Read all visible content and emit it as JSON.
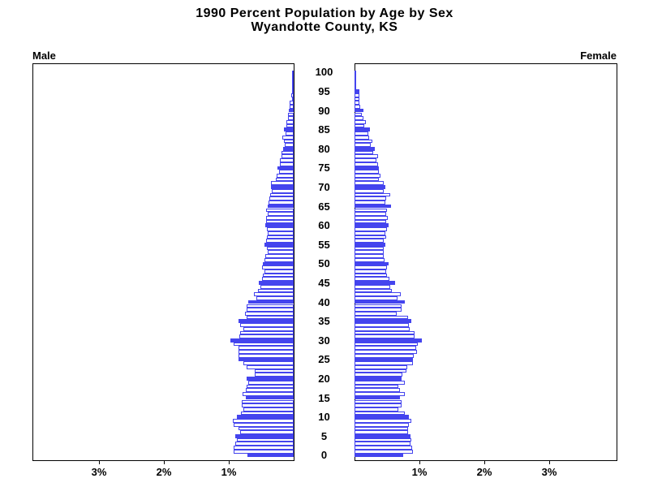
{
  "title": {
    "line1": "1990 Percent Population by Age by Sex",
    "line2": "Wyandotte County, KS"
  },
  "panels": {
    "male_label": "Male",
    "female_label": "Female"
  },
  "axis": {
    "age_tick_labels": [
      "0",
      "5",
      "10",
      "15",
      "20",
      "25",
      "30",
      "35",
      "40",
      "45",
      "50",
      "55",
      "60",
      "65",
      "70",
      "75",
      "80",
      "85",
      "90",
      "95",
      "100"
    ],
    "male_pct_tick_labels": [
      "3%",
      "2%",
      "1%"
    ],
    "female_pct_tick_labels": [
      "1%",
      "2%",
      "3%"
    ]
  },
  "colors": {
    "bar_accent": "#4444EE",
    "bar_fill_white": "#FFFFFF",
    "frame_black": "#000000"
  },
  "chart_data": {
    "type": "bar",
    "subtype": "population-pyramid",
    "title": "1990 Percent Population by Age by Sex",
    "subtitle": "Wyandotte County, KS",
    "unit": "percent of total population",
    "age_min": 0,
    "age_max": 100,
    "highlight_every_5_years": true,
    "xlim_each_side_pct": [
      0,
      4
    ],
    "x_ticks_pct": [
      1,
      2,
      3
    ],
    "series": [
      {
        "name": "Male",
        "side": "left",
        "values_by_age": [
          0.71,
          0.93,
          0.92,
          0.9,
          0.88,
          0.9,
          0.82,
          0.85,
          0.92,
          0.94,
          0.88,
          0.81,
          0.78,
          0.8,
          0.8,
          0.74,
          0.79,
          0.74,
          0.73,
          0.7,
          0.72,
          0.6,
          0.6,
          0.72,
          0.77,
          0.85,
          0.85,
          0.85,
          0.85,
          0.93,
          0.98,
          0.84,
          0.82,
          0.77,
          0.82,
          0.85,
          0.72,
          0.75,
          0.72,
          0.72,
          0.7,
          0.58,
          0.61,
          0.55,
          0.51,
          0.54,
          0.49,
          0.47,
          0.45,
          0.49,
          0.47,
          0.45,
          0.44,
          0.4,
          0.41,
          0.45,
          0.42,
          0.41,
          0.4,
          0.41,
          0.44,
          0.43,
          0.43,
          0.4,
          0.42,
          0.4,
          0.39,
          0.37,
          0.36,
          0.34,
          0.35,
          0.35,
          0.28,
          0.26,
          0.23,
          0.25,
          0.21,
          0.21,
          0.19,
          0.19,
          0.16,
          0.14,
          0.15,
          0.17,
          0.13,
          0.15,
          0.11,
          0.11,
          0.09,
          0.09,
          0.08,
          0.06,
          0.06,
          0.03,
          0.04,
          0.03,
          0.01,
          0.01,
          0.01,
          0.01,
          0.01
        ]
      },
      {
        "name": "Female",
        "side": "right",
        "values_by_age": [
          0.75,
          0.9,
          0.89,
          0.86,
          0.88,
          0.86,
          0.82,
          0.82,
          0.84,
          0.87,
          0.84,
          0.78,
          0.68,
          0.72,
          0.73,
          0.7,
          0.78,
          0.7,
          0.68,
          0.78,
          0.73,
          0.74,
          0.8,
          0.81,
          0.9,
          0.9,
          0.91,
          0.96,
          0.95,
          0.98,
          1.04,
          0.92,
          0.92,
          0.85,
          0.84,
          0.88,
          0.82,
          0.65,
          0.72,
          0.72,
          0.78,
          0.66,
          0.71,
          0.57,
          0.55,
          0.62,
          0.54,
          0.5,
          0.49,
          0.5,
          0.52,
          0.46,
          0.45,
          0.45,
          0.45,
          0.48,
          0.45,
          0.49,
          0.48,
          0.5,
          0.53,
          0.49,
          0.51,
          0.49,
          0.5,
          0.56,
          0.48,
          0.49,
          0.55,
          0.45,
          0.47,
          0.45,
          0.38,
          0.4,
          0.38,
          0.37,
          0.36,
          0.34,
          0.36,
          0.29,
          0.31,
          0.25,
          0.27,
          0.22,
          0.21,
          0.24,
          0.15,
          0.17,
          0.14,
          0.11,
          0.14,
          0.09,
          0.08,
          0.07,
          0.08,
          0.07,
          0.03,
          0.02,
          0.02,
          0.01,
          0.02
        ]
      }
    ]
  }
}
